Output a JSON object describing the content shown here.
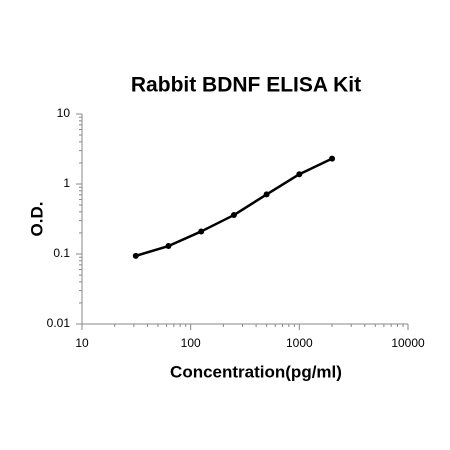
{
  "chart_data": {
    "type": "line",
    "title": "Rabbit BDNF ELISA Kit",
    "xlabel": "Concentration(pg/ml)",
    "ylabel": "O.D.",
    "x": [
      31.25,
      62.5,
      125,
      250,
      500,
      1000,
      2000
    ],
    "series": [
      {
        "name": "O.D.",
        "color": "#000000",
        "values": [
          0.094,
          0.13,
          0.21,
          0.36,
          0.71,
          1.38,
          2.3
        ]
      }
    ],
    "xlim": [
      10,
      10000
    ],
    "ylim": [
      0.01,
      10
    ],
    "xticks": [
      10,
      100,
      1000,
      10000
    ],
    "yticks": [
      0.01,
      0.1,
      1,
      10
    ],
    "xscale": "log",
    "yscale": "log",
    "grid": false,
    "legend": false
  }
}
